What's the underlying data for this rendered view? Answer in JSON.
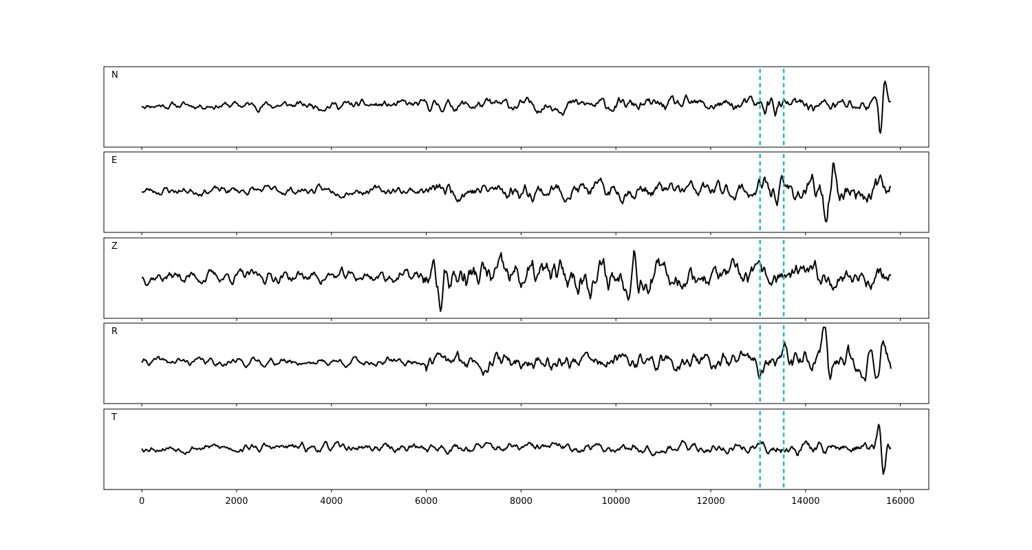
{
  "chart_data": {
    "type": "line",
    "title": "",
    "xlabel": "",
    "ylabel": "",
    "xlim": [
      -800,
      16600
    ],
    "n_samples": 15800,
    "x_ticks": [
      0,
      2000,
      4000,
      6000,
      8000,
      10000,
      12000,
      14000,
      16000
    ],
    "x_tick_labels": [
      "0",
      "2000",
      "4000",
      "6000",
      "8000",
      "10000",
      "12000",
      "14000",
      "16000"
    ],
    "grid": false,
    "markers": {
      "color": "#17becf",
      "style": "dashed",
      "x": [
        13040,
        13540
      ]
    },
    "trace_color": "#000000",
    "channels": [
      {
        "name": "N",
        "label": "N"
      },
      {
        "name": "E",
        "label": "E"
      },
      {
        "name": "Z",
        "label": "Z"
      },
      {
        "name": "R",
        "label": "R"
      },
      {
        "name": "T",
        "label": "T"
      }
    ]
  }
}
